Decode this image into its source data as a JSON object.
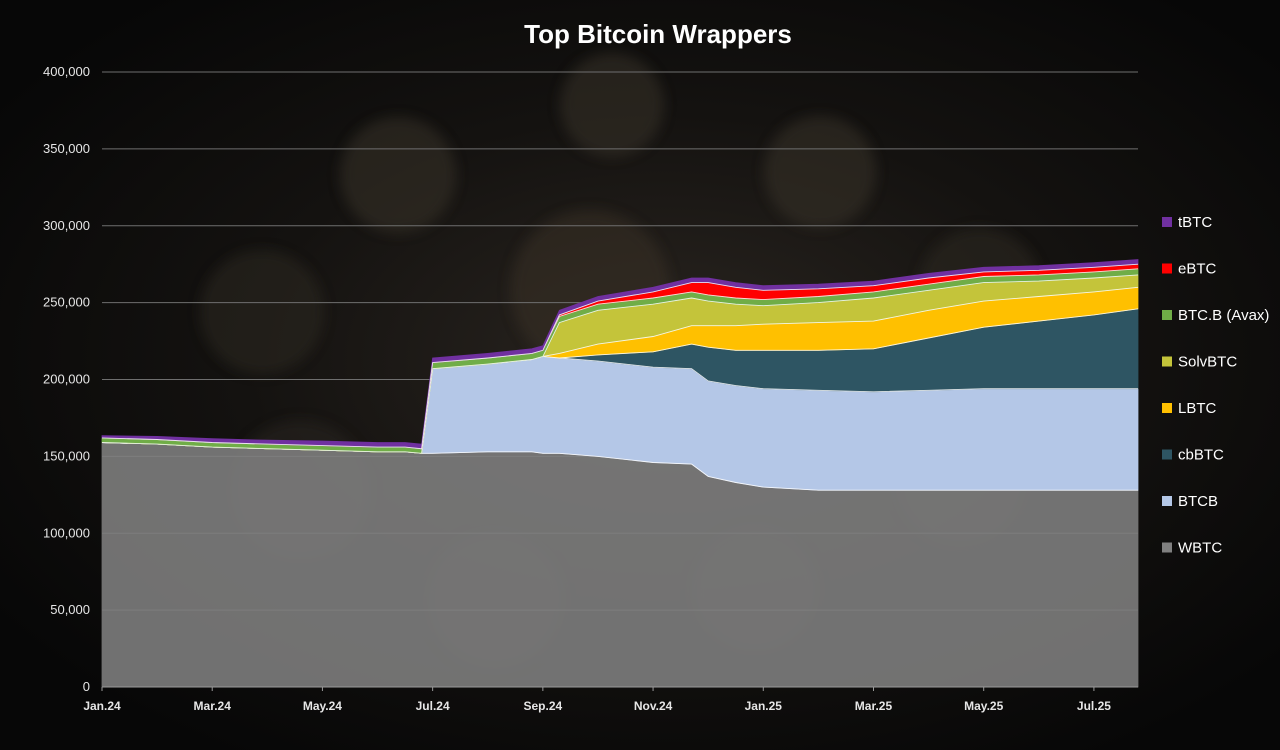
{
  "chart_data": {
    "type": "area",
    "stacked": true,
    "title": "Top Bitcoin Wrappers",
    "xlabel": "",
    "ylabel": "",
    "ylim": [
      0,
      400000
    ],
    "yticks": [
      0,
      50000,
      100000,
      150000,
      200000,
      250000,
      300000,
      350000,
      400000
    ],
    "ytick_labels": [
      "0",
      "50,000",
      "100,000",
      "150,000",
      "200,000",
      "250,000",
      "300,000",
      "350,000",
      "400,000"
    ],
    "xtick_labels": [
      "Jan.24",
      "Mar.24",
      "May.24",
      "Jul.24",
      "Sep.24",
      "Nov.24",
      "Jan.25",
      "Mar.25",
      "May.25",
      "Jul.25"
    ],
    "x_months": [
      0,
      1,
      2,
      3,
      4,
      5,
      5.5,
      5.8,
      6,
      7,
      7.8,
      8,
      8.3,
      9,
      10,
      10.7,
      11,
      11.5,
      12,
      13,
      14,
      15,
      16,
      17,
      18,
      18.8
    ],
    "grid": true,
    "legend_position": "right",
    "series": [
      {
        "name": "WBTC",
        "color": "#808080",
        "values": [
          159000,
          158000,
          156000,
          155000,
          154000,
          153000,
          153000,
          152000,
          152000,
          153000,
          153000,
          152000,
          152000,
          150000,
          146000,
          145000,
          137000,
          133000,
          130000,
          128000,
          128000,
          128000,
          128000,
          128000,
          128000,
          128000
        ]
      },
      {
        "name": "BTCB",
        "color": "#b4c7e7",
        "values": [
          0,
          0,
          0,
          0,
          0,
          0,
          0,
          0,
          55000,
          57000,
          60000,
          63000,
          62000,
          62000,
          62000,
          62000,
          62000,
          63000,
          64000,
          65000,
          64000,
          65000,
          66000,
          66000,
          66000,
          66000
        ]
      },
      {
        "name": "cbBTC",
        "color": "#2e5563",
        "values": [
          0,
          0,
          0,
          0,
          0,
          0,
          0,
          0,
          0,
          0,
          0,
          0,
          0,
          4000,
          10000,
          16000,
          22000,
          23000,
          25000,
          26000,
          28000,
          34000,
          40000,
          44000,
          48000,
          52000
        ]
      },
      {
        "name": "LBTC",
        "color": "#ffc000",
        "values": [
          0,
          0,
          0,
          0,
          0,
          0,
          0,
          0,
          0,
          0,
          0,
          0,
          3000,
          7000,
          10000,
          12000,
          14000,
          16000,
          17000,
          18000,
          18000,
          18000,
          17000,
          16000,
          15000,
          14000
        ]
      },
      {
        "name": "SolvBTC",
        "color": "#c4c43a",
        "values": [
          0,
          0,
          0,
          0,
          0,
          0,
          0,
          0,
          0,
          0,
          0,
          0,
          20000,
          22000,
          21000,
          18000,
          16000,
          14000,
          12000,
          13000,
          15000,
          13000,
          12000,
          10000,
          9000,
          8000
        ]
      },
      {
        "name": "BTC.B (Avax)",
        "color": "#70ad47",
        "values": [
          3000,
          3000,
          3000,
          3000,
          3000,
          3000,
          3000,
          3000,
          4000,
          4000,
          4000,
          4000,
          4000,
          4000,
          4000,
          4000,
          4000,
          4000,
          4000,
          4000,
          4000,
          4000,
          4000,
          4000,
          4000,
          4000
        ]
      },
      {
        "name": "eBTC",
        "color": "#ff0000",
        "values": [
          0,
          0,
          0,
          0,
          0,
          0,
          0,
          0,
          0,
          0,
          0,
          0,
          1000,
          2000,
          4000,
          6000,
          8000,
          7000,
          6000,
          5000,
          4000,
          4000,
          3000,
          3000,
          3000,
          3000
        ]
      },
      {
        "name": "tBTC",
        "color": "#7030a0",
        "values": [
          1500,
          2000,
          2500,
          2500,
          3000,
          3000,
          3000,
          3000,
          3000,
          3000,
          3000,
          3000,
          3000,
          3000,
          3000,
          3000,
          3000,
          3000,
          3000,
          3000,
          3000,
          3000,
          3000,
          3000,
          3000,
          3000
        ]
      }
    ]
  }
}
